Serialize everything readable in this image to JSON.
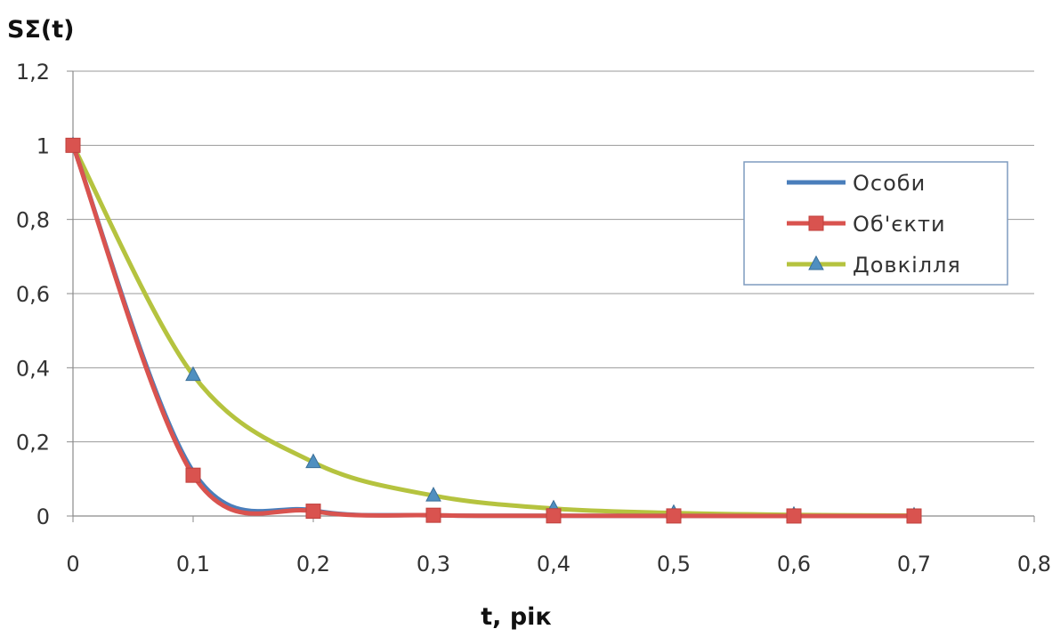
{
  "chart_data": {
    "type": "line",
    "title": "",
    "xlabel": "t, рік",
    "ylabel": "SΣ(t)",
    "xlim": [
      0,
      0.8
    ],
    "ylim": [
      0,
      1.2
    ],
    "x_ticks": [
      "0",
      "0,1",
      "0,2",
      "0,3",
      "0,4",
      "0,5",
      "0,6",
      "0,7",
      "0,8"
    ],
    "y_ticks": [
      "0",
      "0,2",
      "0,4",
      "0,6",
      "0,8",
      "1",
      "1,2"
    ],
    "grid": "horizontal",
    "smooth": true,
    "legend_position": "right",
    "x": [
      0,
      0.1,
      0.2,
      0.3,
      0.4,
      0.5,
      0.6,
      0.7
    ],
    "series": [
      {
        "name": "Особи",
        "values": [
          1.0,
          0.12,
          0.015,
          0.002,
          0.0005,
          0.0002,
          0.0001,
          0.0
        ],
        "color": "#4a7ebb",
        "marker": "none"
      },
      {
        "name": "Об'єкти",
        "values": [
          1.0,
          0.11,
          0.013,
          0.002,
          0.0005,
          0.0002,
          0.0001,
          0.0
        ],
        "color": "#d9534f",
        "marker": "square"
      },
      {
        "name": "Довкілля",
        "values": [
          1.0,
          0.38,
          0.145,
          0.055,
          0.02,
          0.008,
          0.003,
          0.001
        ],
        "color": "#b5c33f",
        "marker": "triangle"
      }
    ]
  }
}
